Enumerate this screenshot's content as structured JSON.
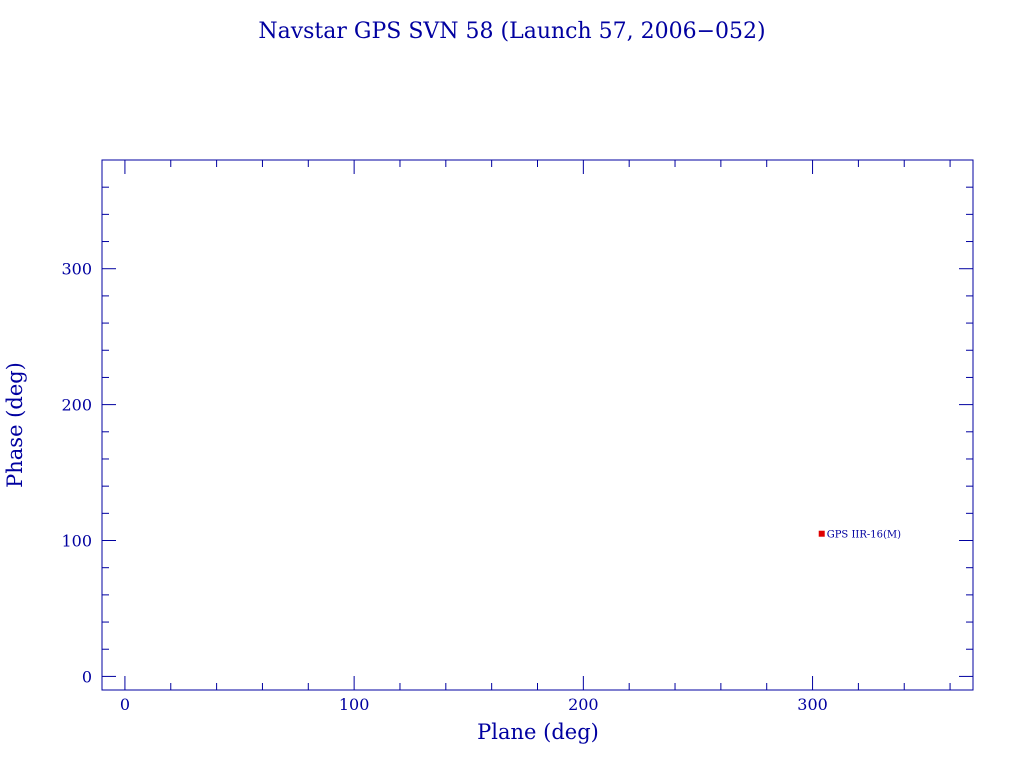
{
  "chart_data": {
    "type": "scatter",
    "title": "Navstar GPS SVN 58 (Launch 57, 2006−052)",
    "xlabel": "Plane (deg)",
    "ylabel": "Phase (deg)",
    "xlim": [
      -10,
      370
    ],
    "ylim": [
      -10,
      380
    ],
    "xticks": [
      0,
      100,
      200,
      300
    ],
    "yticks": [
      0,
      100,
      200,
      300
    ],
    "minor_tick_step": 20,
    "grid": false,
    "points": [
      {
        "x": 304,
        "y": 105,
        "label": "GPS IIR-16(M)"
      }
    ],
    "colors": {
      "axes": "#0000a0",
      "point": "#e00000",
      "text": "#0000a0"
    }
  }
}
